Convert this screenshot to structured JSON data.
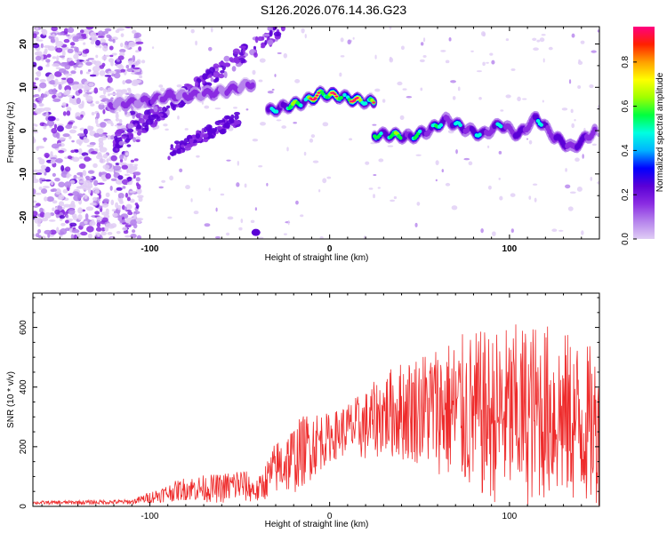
{
  "title": "S126.2026.076.14.36.G23",
  "colors": {
    "snr_line": "#ee2b2b",
    "axis": "#000000",
    "colormap": [
      "#e0cdf5",
      "#b583ec",
      "#8a2be2",
      "#5a00d6",
      "#0000ff",
      "#00b4ff",
      "#00ffe0",
      "#00ff40",
      "#a0ff00",
      "#ffff00",
      "#ffa000",
      "#ff2000",
      "#ff0080"
    ]
  },
  "chart_data": [
    {
      "type": "heatmap",
      "name": "spectrogram",
      "xlabel": "Height of straight line (km)",
      "ylabel": "Frequency (Hz)",
      "xlim": [
        -165,
        150
      ],
      "ylim": [
        -25,
        24
      ],
      "xticks": [
        -100,
        0,
        100
      ],
      "xtick_labels": [
        "-100",
        "0",
        "100"
      ],
      "yticks": [
        -20,
        -10,
        0,
        10,
        20
      ],
      "ytick_labels": [
        "-20",
        "-10",
        "0",
        "10",
        "20"
      ],
      "ridge_segments": [
        {
          "x": [
            -122,
            -110,
            -100,
            -90,
            -80,
            -70,
            -60,
            -50,
            -42
          ],
          "freq": [
            6,
            6.5,
            7,
            8,
            8,
            8.5,
            9,
            10,
            11
          ],
          "peak": [
            0.3,
            0.3,
            0.35,
            0.35,
            0.3,
            0.35,
            0.3,
            0.3,
            0.25
          ]
        },
        {
          "x": [
            -34,
            -25,
            -15,
            -5,
            5,
            15,
            25
          ],
          "freq": [
            4.5,
            5.5,
            6.5,
            8.5,
            8,
            7,
            6.5
          ],
          "peak": [
            0.45,
            0.6,
            0.75,
            0.95,
            0.8,
            0.85,
            0.75
          ]
        },
        {
          "x": [
            25,
            35,
            45,
            55,
            65,
            75,
            85,
            95,
            105,
            115,
            125,
            135,
            148
          ],
          "freq": [
            -1,
            -1,
            -1.5,
            0,
            2.5,
            0.5,
            -1,
            1.5,
            -1,
            3,
            -1.5,
            -4,
            0
          ],
          "peak": [
            0.6,
            0.7,
            0.55,
            0.55,
            0.55,
            0.5,
            0.5,
            0.5,
            0.45,
            0.5,
            0.45,
            0.45,
            0.4
          ]
        }
      ],
      "colorbar": {
        "label": "Normalized spectral amplitude",
        "range": [
          0,
          0.96
        ],
        "ticks": [
          0.0,
          0.2,
          0.4,
          0.6,
          0.8
        ],
        "tick_labels": [
          "0.0",
          "0.2",
          "0.4",
          "0.6",
          "0.8"
        ]
      }
    },
    {
      "type": "line",
      "name": "snr",
      "xlabel": "Height of straight line (km)",
      "ylabel": "SNR (10 * v/v)",
      "xlim": [
        -165,
        150
      ],
      "ylim": [
        0,
        715
      ],
      "xticks": [
        -100,
        0,
        100
      ],
      "xtick_labels": [
        "-100",
        "0",
        "100"
      ],
      "yticks": [
        0,
        200,
        400,
        600
      ],
      "ytick_labels": [
        "0",
        "200",
        "400",
        "600"
      ],
      "envelope_x": [
        -165,
        -110,
        -100,
        -80,
        -60,
        -50,
        -40,
        -30,
        -20,
        -10,
        0,
        10,
        20,
        30,
        40,
        50,
        60,
        70,
        80,
        90,
        100,
        110,
        120,
        130,
        140,
        150
      ],
      "envelope_mean": [
        12,
        15,
        30,
        60,
        60,
        75,
        50,
        130,
        160,
        210,
        230,
        260,
        270,
        310,
        320,
        330,
        330,
        320,
        310,
        300,
        310,
        310,
        320,
        300,
        280,
        260
      ],
      "envelope_spread": [
        6,
        8,
        20,
        40,
        50,
        60,
        40,
        90,
        120,
        120,
        80,
        90,
        120,
        140,
        170,
        190,
        220,
        250,
        280,
        290,
        300,
        310,
        300,
        290,
        280,
        260
      ]
    }
  ]
}
